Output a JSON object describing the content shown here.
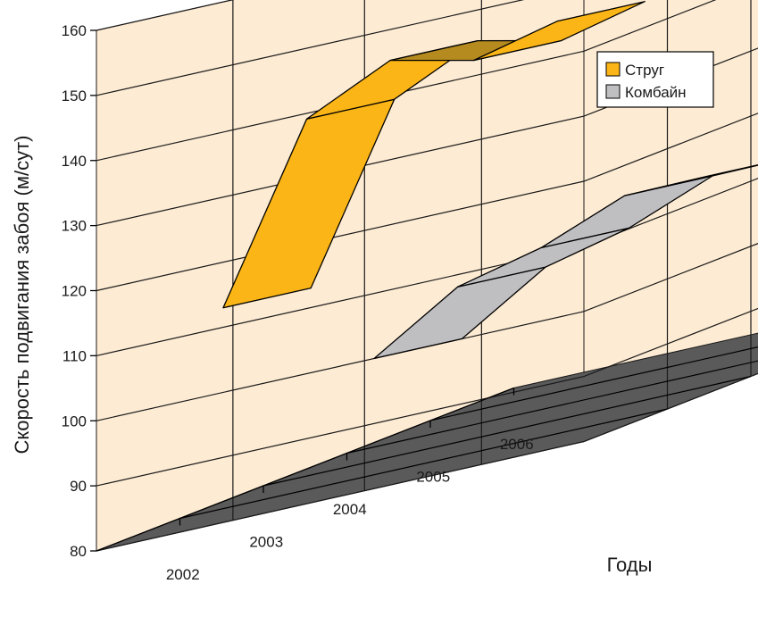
{
  "chart_data": {
    "type": "area",
    "categories": [
      "2002",
      "2003",
      "2004",
      "2005",
      "2006"
    ],
    "series": [
      {
        "name": "Струг",
        "values": [
          113,
          137,
          141,
          136,
          137
        ]
      },
      {
        "name": "Комбайн",
        "values": [
          100,
          106,
          107,
          110,
          108
        ]
      }
    ],
    "ylabel": "Скорость подвигания забоя (м/сут)",
    "xlabel": "Годы",
    "ylim": [
      80,
      160
    ],
    "yticks": [
      80,
      90,
      100,
      110,
      120,
      130,
      140,
      150,
      160
    ],
    "grid": true,
    "legend_position": "top-right",
    "colors": {
      "wall": "#fdebd3",
      "wall_side": "#f4d6a8",
      "floor": "#5a5a5a",
      "strug": "#fbb516",
      "strug_dark": "#b58a1e",
      "kombain": "#bfbfc2",
      "kombain_dark": "#8a8a8e",
      "grid": "#1a1a1a"
    }
  }
}
